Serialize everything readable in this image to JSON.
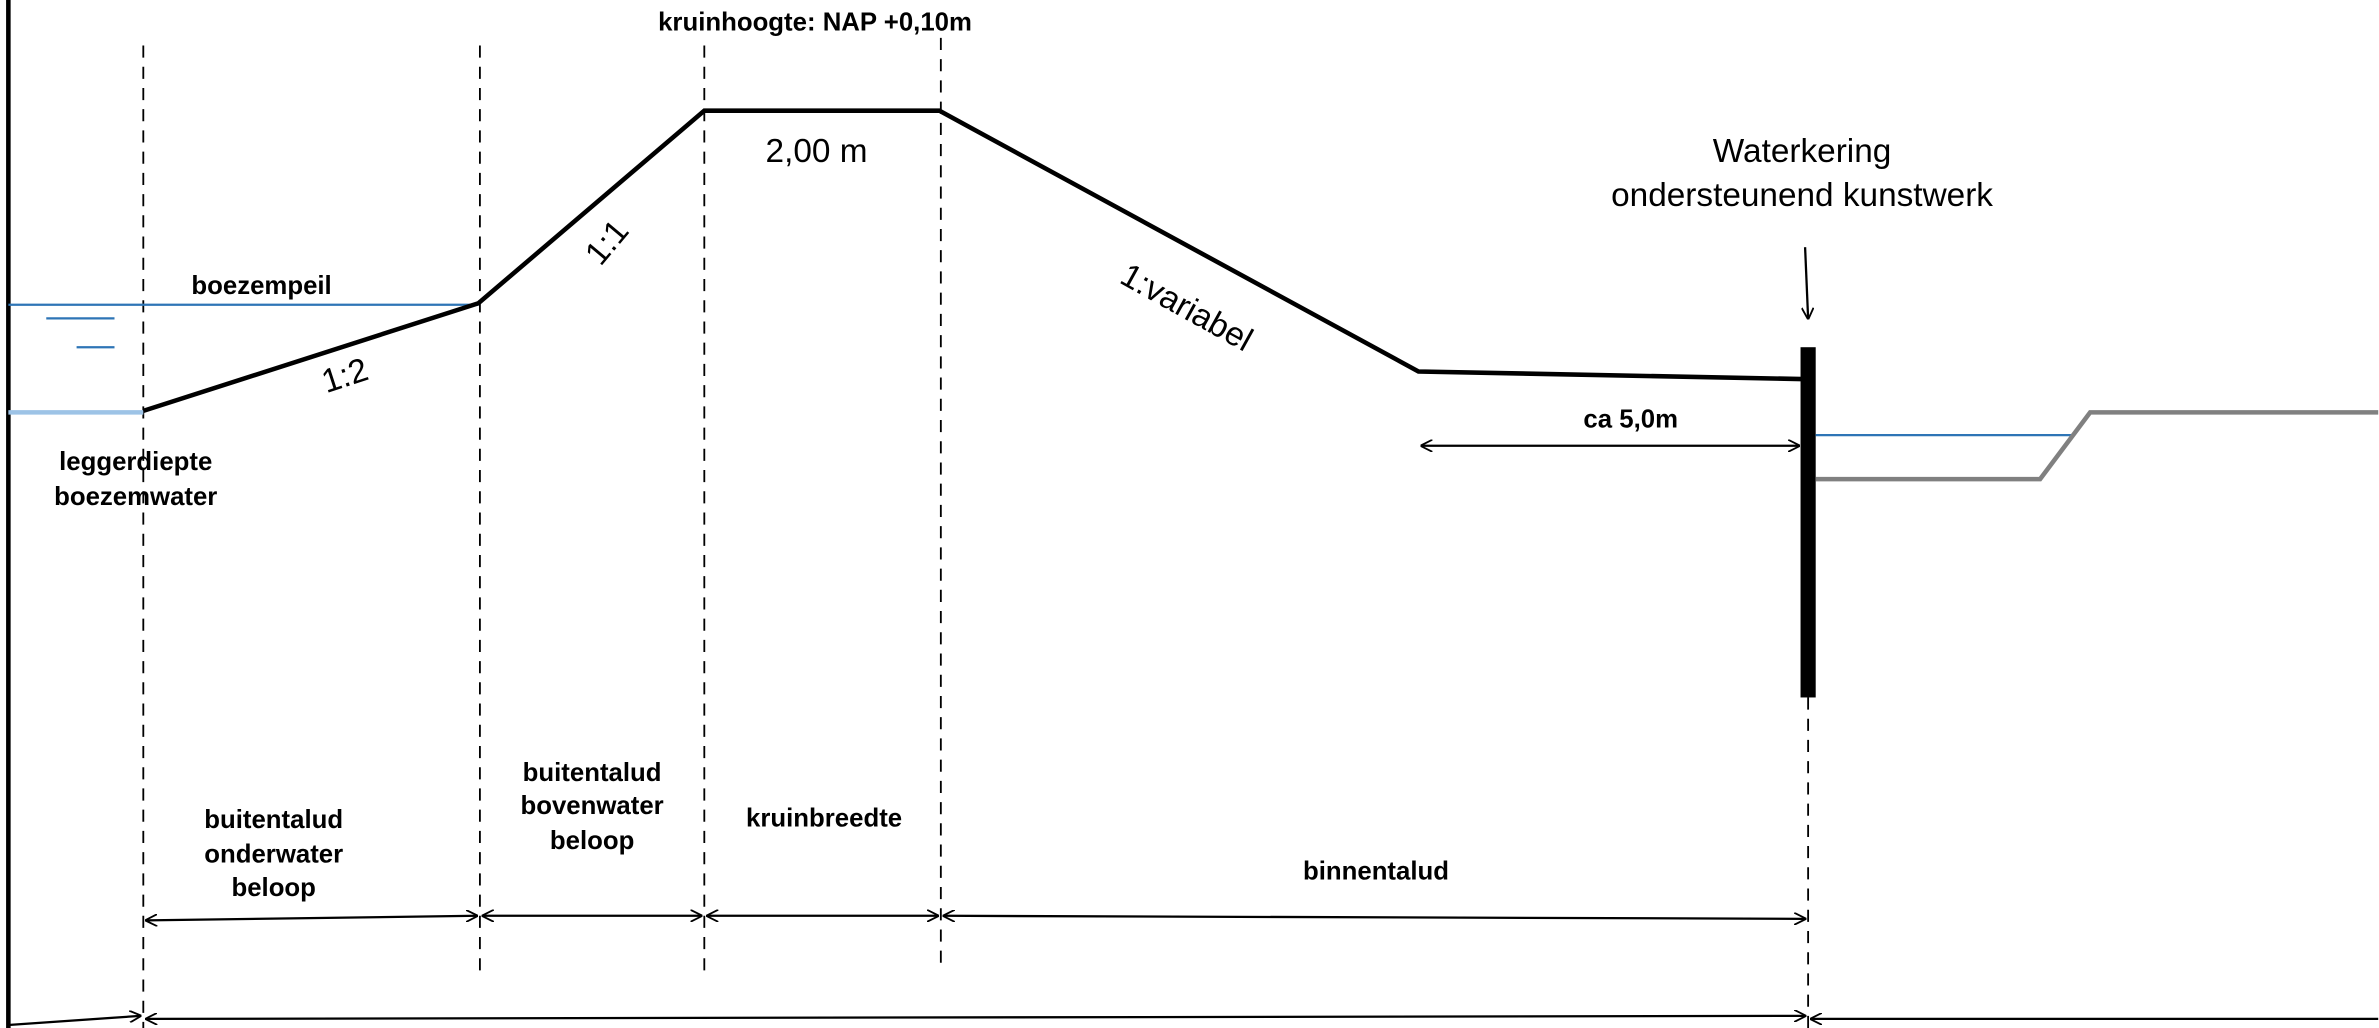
{
  "crest_height": "kruinhoogte: NAP +0,10m",
  "crest_width_value": "2,00 m",
  "structure": [
    "Waterkering",
    "ondersteunend kunstwerk"
  ],
  "water_level": "boezempeil",
  "slopes": {
    "outer_under": "1:2",
    "outer_above": "1:1",
    "inner": "1:variabel"
  },
  "depth": [
    "leggerdiepte",
    "boezemwater"
  ],
  "berm_width": "ca 5,0m",
  "zones": {
    "outer_under": [
      "buitentalud",
      "onderwater",
      "beloop"
    ],
    "outer_above": [
      "buitentalud",
      "bovenwater",
      "beloop"
    ],
    "crest": [
      "kruinbreedte"
    ],
    "inner": [
      "binnentalud"
    ]
  }
}
